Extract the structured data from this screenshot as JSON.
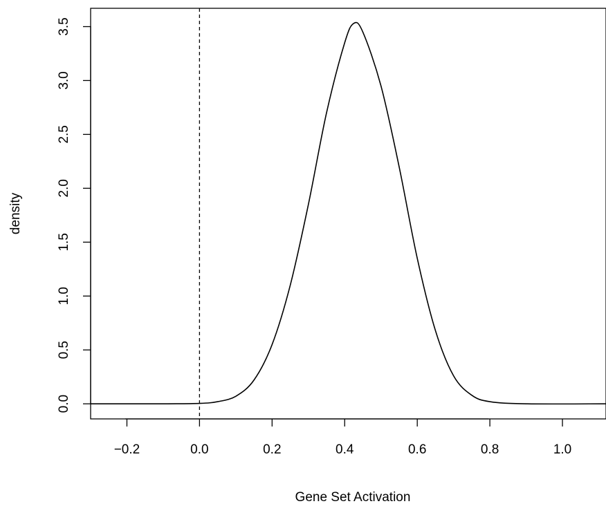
{
  "chart_data": {
    "type": "line",
    "title": "",
    "xlabel": "Gene Set Activation",
    "ylabel": "density",
    "xlim": [
      -0.3,
      1.12
    ],
    "ylim": [
      -0.14,
      3.67
    ],
    "x_ticks": [
      -0.2,
      0.0,
      0.2,
      0.4,
      0.6,
      0.8,
      1.0
    ],
    "x_tick_labels": [
      "−0.2",
      "0.0",
      "0.2",
      "0.4",
      "0.6",
      "0.8",
      "1.0"
    ],
    "y_ticks": [
      0.0,
      0.5,
      1.0,
      1.5,
      2.0,
      2.5,
      3.0,
      3.5
    ],
    "y_tick_labels": [
      "0.0",
      "0.5",
      "1.0",
      "1.5",
      "2.0",
      "2.5",
      "3.0",
      "3.5"
    ],
    "grid": false,
    "reference_line": {
      "x": 0.0,
      "style": "dashed"
    },
    "series": [
      {
        "x": [
          -0.3,
          -0.1,
          0.0,
          0.05,
          0.1,
          0.15,
          0.2,
          0.25,
          0.3,
          0.35,
          0.4,
          0.425,
          0.45,
          0.5,
          0.55,
          0.6,
          0.65,
          0.7,
          0.75,
          0.8,
          0.9,
          1.12
        ],
        "values": [
          0.0,
          0.0,
          0.004,
          0.02,
          0.07,
          0.22,
          0.55,
          1.1,
          1.85,
          2.7,
          3.35,
          3.53,
          3.45,
          2.95,
          2.2,
          1.35,
          0.68,
          0.26,
          0.08,
          0.02,
          0.0,
          0.0
        ]
      }
    ]
  }
}
